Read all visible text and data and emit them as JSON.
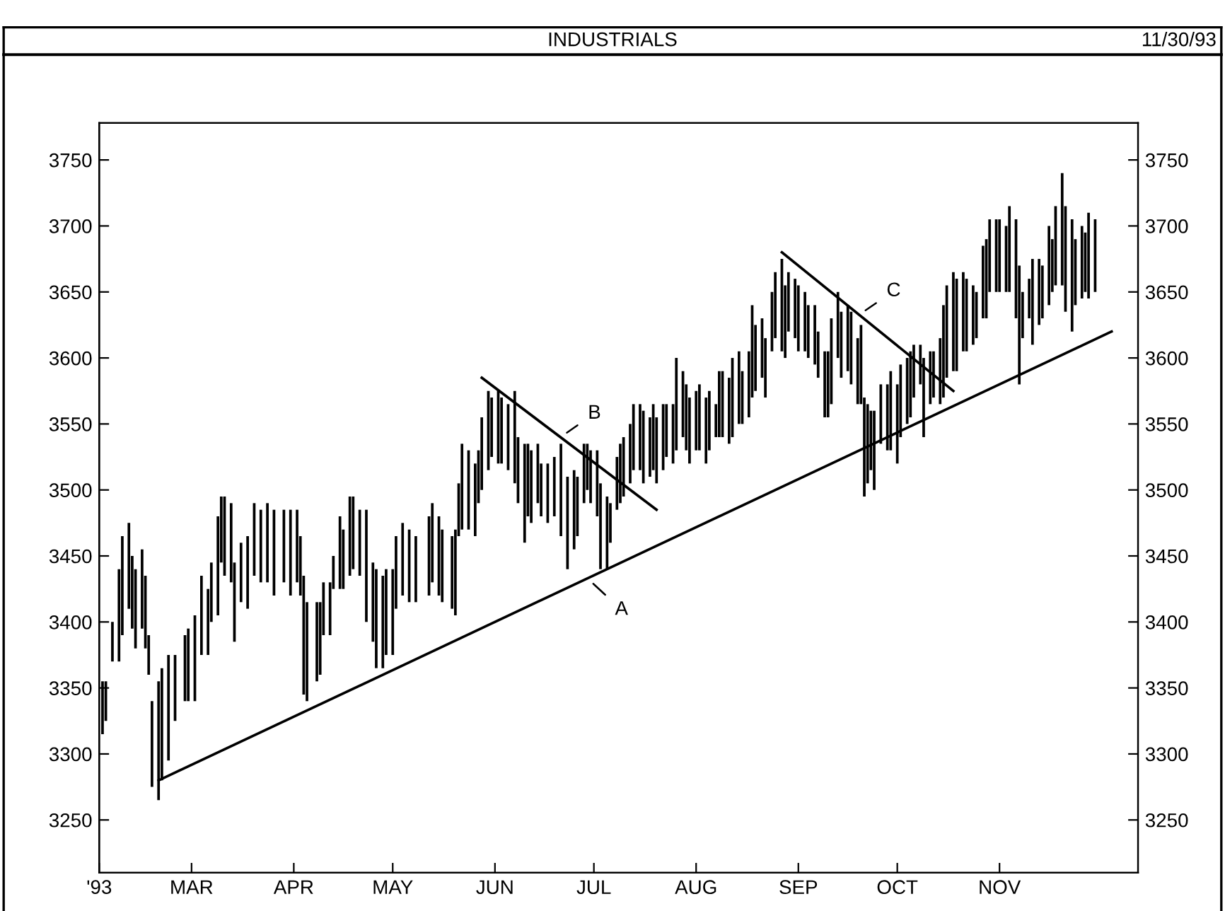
{
  "chart_data": {
    "type": "bar",
    "title": "INDUSTRIALS",
    "subtitle": "11/30/93",
    "xlim": [
      "1993-02-01",
      "1993-12-13"
    ],
    "xticks": [
      {
        "value": "1993-02-01",
        "label": "'93"
      },
      {
        "value": "1993-03-01",
        "label": "MAR"
      },
      {
        "value": "1993-04-01",
        "label": "APR"
      },
      {
        "value": "1993-05-01",
        "label": "MAY"
      },
      {
        "value": "1993-06-01",
        "label": "JUN"
      },
      {
        "value": "1993-07-01",
        "label": "JUL"
      },
      {
        "value": "1993-08-01",
        "label": "AUG"
      },
      {
        "value": "1993-09-01",
        "label": "SEP"
      },
      {
        "value": "1993-10-01",
        "label": "OCT"
      },
      {
        "value": "1993-11-01",
        "label": "NOV"
      }
    ],
    "ylim": [
      3210,
      3778
    ],
    "yticks": [
      3250,
      3300,
      3350,
      3400,
      3450,
      3500,
      3550,
      3600,
      3650,
      3700,
      3750
    ],
    "y2lim": [
      3210,
      3778
    ],
    "y2ticks": [
      3250,
      3300,
      3350,
      3400,
      3450,
      3500,
      3550,
      3600,
      3650,
      3700,
      3750
    ],
    "grid": false,
    "series": [
      {
        "color": "#000000",
        "x": [
          "1993-02-02",
          "1993-02-03",
          "1993-02-05",
          "1993-02-07",
          "1993-02-08",
          "1993-02-10",
          "1993-02-11",
          "1993-02-12",
          "1993-02-14",
          "1993-02-15",
          "1993-02-16",
          "1993-02-17",
          "1993-02-19",
          "1993-02-20",
          "1993-02-22",
          "1993-02-24",
          "1993-02-27",
          "1993-02-28",
          "1993-03-02",
          "1993-03-04",
          "1993-03-06",
          "1993-03-07",
          "1993-03-09",
          "1993-03-10",
          "1993-03-11",
          "1993-03-13",
          "1993-03-14",
          "1993-03-16",
          "1993-03-18",
          "1993-03-20",
          "1993-03-22",
          "1993-03-24",
          "1993-03-26",
          "1993-03-29",
          "1993-03-31",
          "1993-04-02",
          "1993-04-03",
          "1993-04-04",
          "1993-04-05",
          "1993-04-08",
          "1993-04-09",
          "1993-04-10",
          "1993-04-12",
          "1993-04-13",
          "1993-04-15",
          "1993-04-16",
          "1993-04-18",
          "1993-04-19",
          "1993-04-21",
          "1993-04-23",
          "1993-04-25",
          "1993-04-26",
          "1993-04-28",
          "1993-04-29",
          "1993-05-01",
          "1993-05-02",
          "1993-05-04",
          "1993-05-06",
          "1993-05-08",
          "1993-05-12",
          "1993-05-13",
          "1993-05-15",
          "1993-05-16",
          "1993-05-19",
          "1993-05-20",
          "1993-05-21",
          "1993-05-22",
          "1993-05-24",
          "1993-05-26",
          "1993-05-27",
          "1993-05-28",
          "1993-05-30",
          "1993-05-31",
          "1993-06-02",
          "1993-06-03",
          "1993-06-05",
          "1993-06-07",
          "1993-06-08",
          "1993-06-10",
          "1993-06-11",
          "1993-06-12",
          "1993-06-14",
          "1993-06-15",
          "1993-06-17",
          "1993-06-19",
          "1993-06-21",
          "1993-06-23",
          "1993-06-25",
          "1993-06-26",
          "1993-06-28",
          "1993-06-29",
          "1993-06-30",
          "1993-07-02",
          "1993-07-03",
          "1993-07-05",
          "1993-07-06",
          "1993-07-08",
          "1993-07-09",
          "1993-07-10",
          "1993-07-12",
          "1993-07-13",
          "1993-07-15",
          "1993-07-16",
          "1993-07-18",
          "1993-07-19",
          "1993-07-20",
          "1993-07-22",
          "1993-07-23",
          "1993-07-25",
          "1993-07-26",
          "1993-07-28",
          "1993-07-29",
          "1993-07-30",
          "1993-08-01",
          "1993-08-02",
          "1993-08-04",
          "1993-08-05",
          "1993-08-07",
          "1993-08-08",
          "1993-08-09",
          "1993-08-11",
          "1993-08-12",
          "1993-08-14",
          "1993-08-15",
          "1993-08-17",
          "1993-08-18",
          "1993-08-19",
          "1993-08-21",
          "1993-08-22",
          "1993-08-24",
          "1993-08-25",
          "1993-08-27",
          "1993-08-28",
          "1993-08-29",
          "1993-08-31",
          "1993-09-01",
          "1993-09-03",
          "1993-09-04",
          "1993-09-06",
          "1993-09-07",
          "1993-09-09",
          "1993-09-10",
          "1993-09-11",
          "1993-09-13",
          "1993-09-14",
          "1993-09-16",
          "1993-09-17",
          "1993-09-19",
          "1993-09-20",
          "1993-09-21",
          "1993-09-22",
          "1993-09-23",
          "1993-09-24",
          "1993-09-26",
          "1993-09-28",
          "1993-09-29",
          "1993-10-01",
          "1993-10-02",
          "1993-10-04",
          "1993-10-05",
          "1993-10-06",
          "1993-10-08",
          "1993-10-09",
          "1993-10-11",
          "1993-10-12",
          "1993-10-14",
          "1993-10-15",
          "1993-10-16",
          "1993-10-18",
          "1993-10-19",
          "1993-10-21",
          "1993-10-22",
          "1993-10-24",
          "1993-10-25",
          "1993-10-27",
          "1993-10-28",
          "1993-10-29",
          "1993-10-31",
          "1993-11-01",
          "1993-11-03",
          "1993-11-04",
          "1993-11-06",
          "1993-11-07",
          "1993-11-08",
          "1993-11-10",
          "1993-11-11",
          "1993-11-13",
          "1993-11-14",
          "1993-11-16",
          "1993-11-17",
          "1993-11-18",
          "1993-11-20",
          "1993-11-21",
          "1993-11-23",
          "1993-11-24",
          "1993-11-26",
          "1993-11-27",
          "1993-11-28",
          "1993-11-30"
        ],
        "base": [
          3315,
          3325,
          3370,
          3370,
          3390,
          3410,
          3395,
          3380,
          3395,
          3380,
          3360,
          3275,
          3265,
          3280,
          3295,
          3325,
          3340,
          3340,
          3340,
          3375,
          3375,
          3400,
          3405,
          3445,
          3435,
          3430,
          3385,
          3415,
          3410,
          3435,
          3430,
          3430,
          3420,
          3430,
          3420,
          3430,
          3420,
          3345,
          3340,
          3355,
          3360,
          3390,
          3390,
          3425,
          3425,
          3425,
          3435,
          3440,
          3435,
          3400,
          3385,
          3365,
          3365,
          3375,
          3375,
          3410,
          3420,
          3415,
          3415,
          3420,
          3430,
          3420,
          3415,
          3410,
          3405,
          3465,
          3470,
          3470,
          3465,
          3490,
          3500,
          3515,
          3525,
          3520,
          3520,
          3515,
          3505,
          3490,
          3460,
          3480,
          3475,
          3490,
          3480,
          3475,
          3480,
          3465,
          3440,
          3455,
          3465,
          3490,
          3500,
          3490,
          3480,
          3440,
          3440,
          3460,
          3485,
          3490,
          3495,
          3505,
          3515,
          3515,
          3505,
          3510,
          3515,
          3505,
          3515,
          3525,
          3520,
          3530,
          3540,
          3530,
          3520,
          3530,
          3530,
          3520,
          3530,
          3540,
          3540,
          3540,
          3535,
          3540,
          3550,
          3550,
          3555,
          3570,
          3575,
          3585,
          3570,
          3605,
          3615,
          3605,
          3600,
          3620,
          3615,
          3605,
          3605,
          3600,
          3595,
          3585,
          3555,
          3555,
          3565,
          3600,
          3585,
          3590,
          3580,
          3565,
          3565,
          3495,
          3505,
          3515,
          3500,
          3535,
          3530,
          3530,
          3520,
          3540,
          3550,
          3555,
          3570,
          3580,
          3540,
          3565,
          3570,
          3565,
          3570,
          3585,
          3590,
          3590,
          3605,
          3605,
          3610,
          3615,
          3630,
          3630,
          3650,
          3650,
          3650,
          3650,
          3650,
          3630,
          3580,
          3615,
          3630,
          3610,
          3625,
          3630,
          3640,
          3650,
          3655,
          3655,
          3635,
          3620,
          3640,
          3645,
          3650,
          3645,
          3650
        ],
        "values": [
          40,
          30,
          30,
          70,
          75,
          65,
          55,
          60,
          60,
          55,
          30,
          65,
          90,
          85,
          80,
          50,
          50,
          55,
          65,
          60,
          50,
          45,
          75,
          50,
          60,
          60,
          60,
          45,
          55,
          55,
          55,
          60,
          65,
          55,
          65,
          55,
          45,
          90,
          75,
          60,
          55,
          40,
          40,
          25,
          55,
          45,
          60,
          55,
          50,
          85,
          60,
          75,
          70,
          65,
          65,
          55,
          55,
          55,
          50,
          60,
          60,
          60,
          55,
          55,
          65,
          40,
          65,
          60,
          55,
          40,
          55,
          60,
          45,
          55,
          50,
          50,
          70,
          50,
          75,
          55,
          55,
          45,
          40,
          45,
          45,
          70,
          70,
          60,
          45,
          45,
          35,
          40,
          50,
          65,
          55,
          30,
          40,
          45,
          45,
          45,
          50,
          50,
          55,
          45,
          50,
          50,
          50,
          40,
          45,
          70,
          50,
          50,
          50,
          45,
          50,
          50,
          45,
          25,
          50,
          50,
          50,
          60,
          55,
          40,
          50,
          70,
          50,
          45,
          45,
          45,
          50,
          70,
          55,
          45,
          45,
          50,
          45,
          40,
          45,
          35,
          50,
          50,
          65,
          50,
          50,
          50,
          55,
          50,
          60,
          75,
          60,
          45,
          60,
          45,
          50,
          60,
          60,
          55,
          50,
          50,
          40,
          30,
          60,
          40,
          35,
          50,
          70,
          70,
          75,
          70,
          60,
          55,
          45,
          35,
          55,
          60,
          55,
          55,
          55,
          50,
          65,
          75,
          90,
          35,
          30,
          65,
          50,
          40,
          60,
          40,
          60,
          85,
          80,
          85,
          50,
          55,
          45,
          65,
          55
        ]
      },
      {
        "type": "line",
        "name": "A",
        "color": "#000000",
        "x": [
          "1993-02-19",
          "1993-12-05"
        ],
        "values": [
          3280,
          3620
        ]
      },
      {
        "type": "line",
        "name": "B",
        "color": "#000000",
        "x": [
          "1993-05-28",
          "1993-07-20"
        ],
        "values": [
          3585,
          3485
        ]
      },
      {
        "type": "line",
        "name": "C",
        "color": "#000000",
        "x": [
          "1993-08-27",
          "1993-10-18"
        ],
        "values": [
          3680,
          3575
        ]
      }
    ]
  }
}
